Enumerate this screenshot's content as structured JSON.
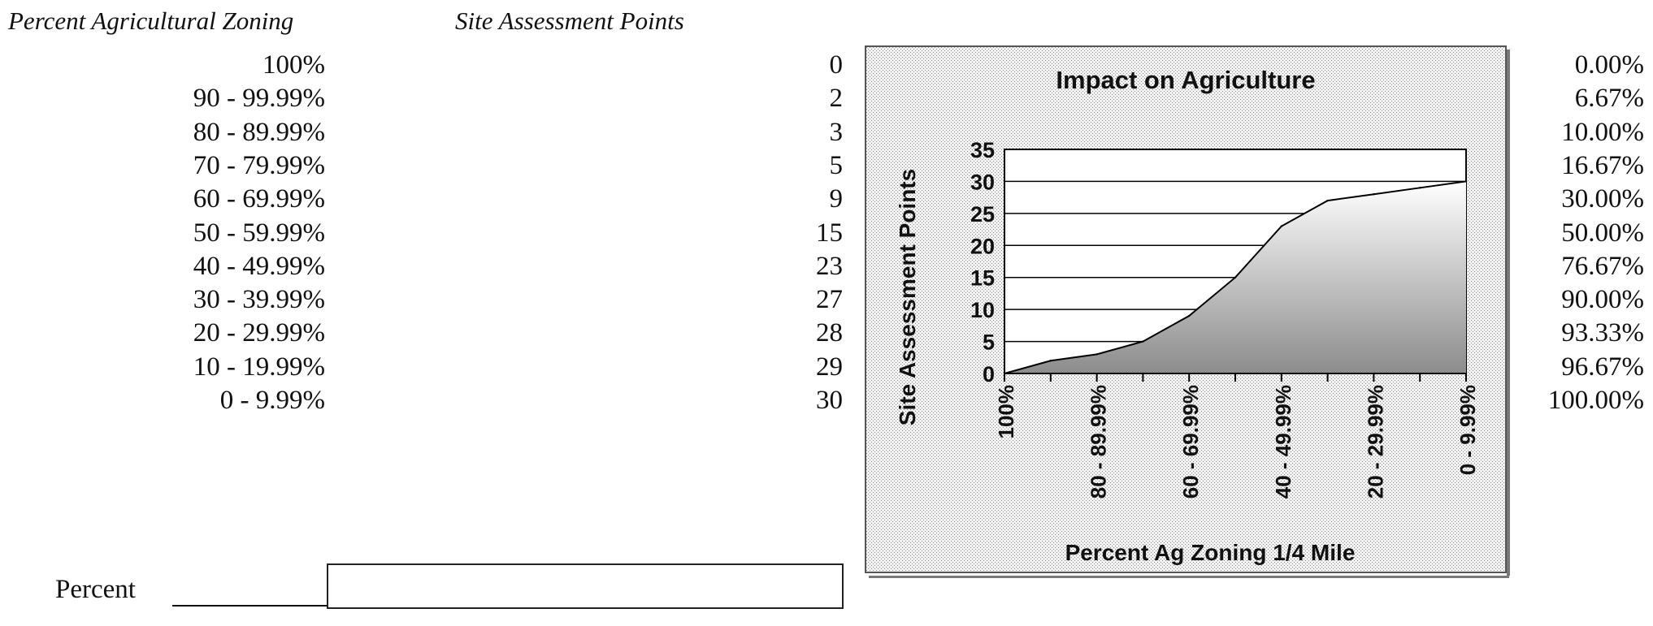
{
  "headers": {
    "zoning": "Percent Agricultural Zoning",
    "points": "Site Assessment Points"
  },
  "rows": [
    {
      "range": "100%",
      "points": "0",
      "percent": "0.00%"
    },
    {
      "range": "90 - 99.99%",
      "points": "2",
      "percent": "6.67%"
    },
    {
      "range": "80 - 89.99%",
      "points": "3",
      "percent": "10.00%"
    },
    {
      "range": "70 - 79.99%",
      "points": "5",
      "percent": "16.67%"
    },
    {
      "range": "60 - 69.99%",
      "points": "9",
      "percent": "30.00%"
    },
    {
      "range": "50 - 59.99%",
      "points": "15",
      "percent": "50.00%"
    },
    {
      "range": "40 - 49.99%",
      "points": "23",
      "percent": "76.67%"
    },
    {
      "range": "30 - 39.99%",
      "points": "27",
      "percent": "90.00%"
    },
    {
      "range": "20 - 29.99%",
      "points": "28",
      "percent": "93.33%"
    },
    {
      "range": "10 - 19.99%",
      "points": "29",
      "percent": "96.67%"
    },
    {
      "range": "0 - 9.99%",
      "points": "30",
      "percent": "100.00%"
    }
  ],
  "input": {
    "label": "Percent",
    "value": ""
  },
  "chart_data": {
    "type": "area",
    "title": "Impact on Agriculture",
    "xlabel": "Percent Ag Zoning 1/4 Mile",
    "ylabel": "Site Assessment Points",
    "categories": [
      "100%",
      "90 - 99.99%",
      "80 - 89.99%",
      "70 - 79.99%",
      "60 - 69.99%",
      "50 - 59.99%",
      "40 - 49.99%",
      "30 - 39.99%",
      "20 - 29.99%",
      "10 - 19.99%",
      "0 - 9.99%"
    ],
    "tick_labels_shown": [
      "100%",
      "80 - 89.99%",
      "60 - 69.99%",
      "40 - 49.99%",
      "20 - 29.99%",
      "0 - 9.99%"
    ],
    "values": [
      0,
      2,
      3,
      5,
      9,
      15,
      23,
      27,
      28,
      29,
      30
    ],
    "y_ticks": [
      0,
      5,
      10,
      15,
      20,
      25,
      30,
      35
    ],
    "ylim": [
      0,
      35
    ],
    "grid": "horizontal",
    "colors": {
      "area": "#9a9a9a",
      "background": "#d8d8d8",
      "line": "#000000"
    }
  }
}
